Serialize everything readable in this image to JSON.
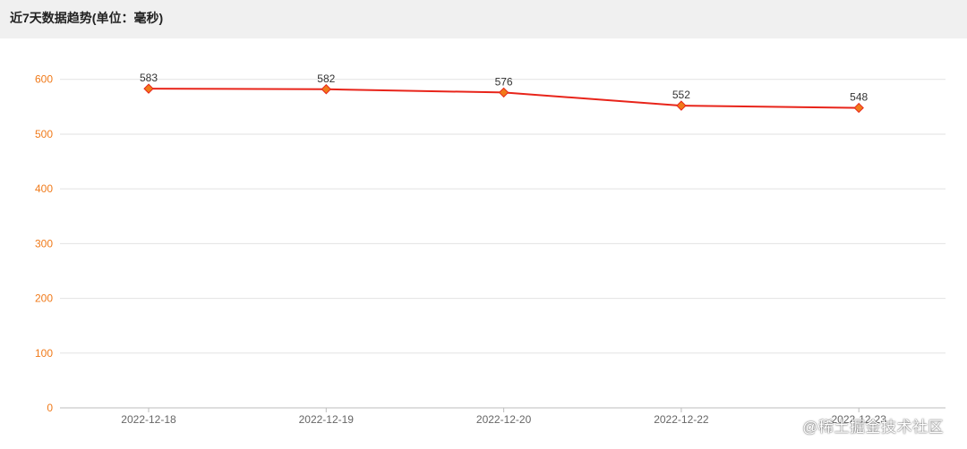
{
  "header": {
    "title": "近7天数据趋势(单位：毫秒)"
  },
  "watermark": "@稀土掘金技术社区",
  "chart_data": {
    "type": "line",
    "categories": [
      "2022-12-18",
      "2022-12-19",
      "2022-12-20",
      "2022-12-22",
      "2022-12-23"
    ],
    "series": [
      {
        "values": [
          583,
          582,
          576,
          552,
          548
        ],
        "color": "#e8241a",
        "marker_color": "#f07a1a"
      }
    ],
    "ylim": [
      0,
      650
    ],
    "yticks": [
      0,
      100,
      200,
      300,
      400,
      500,
      600
    ],
    "grid": true,
    "ytick_color": "#f07a1a",
    "xtick_color": "#666666"
  }
}
